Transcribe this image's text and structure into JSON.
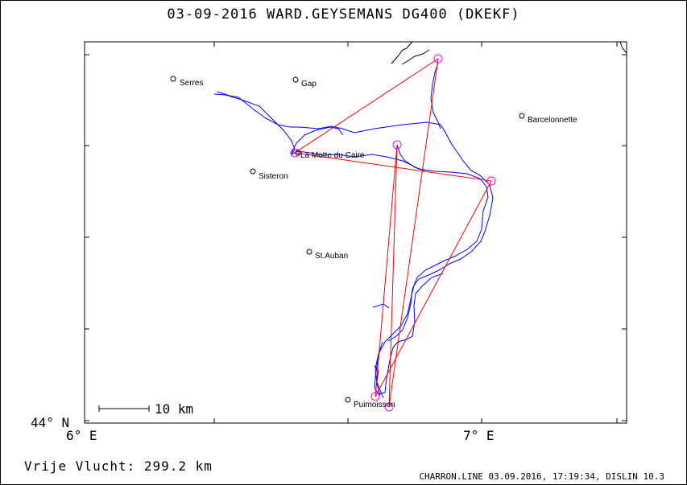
{
  "title": "03-09-2016   WARD.GEYSEMANS   DG400 (DKEKF)",
  "axes": {
    "lat_label": "44° N",
    "lon_left": "6° E",
    "lon_right": "7° E"
  },
  "scale_bar": {
    "label": "10 km"
  },
  "distance": "Vrije Vlucht:  299.2 km",
  "footer": "CHARRON.LINE 03.09.2016, 17:19:34, DISLIN 10.3",
  "towns": [
    {
      "name": "Serres"
    },
    {
      "name": "Gap"
    },
    {
      "name": "Barcelonnette"
    },
    {
      "name": "La Motte du Caire"
    },
    {
      "name": "Sisteron"
    },
    {
      "name": "St.Auban"
    },
    {
      "name": "Puimoisson"
    }
  ],
  "colors": {
    "track": "#0000ff",
    "task": "#ff0000",
    "turnpoint": "#ff00ff",
    "frame": "#000000"
  }
}
